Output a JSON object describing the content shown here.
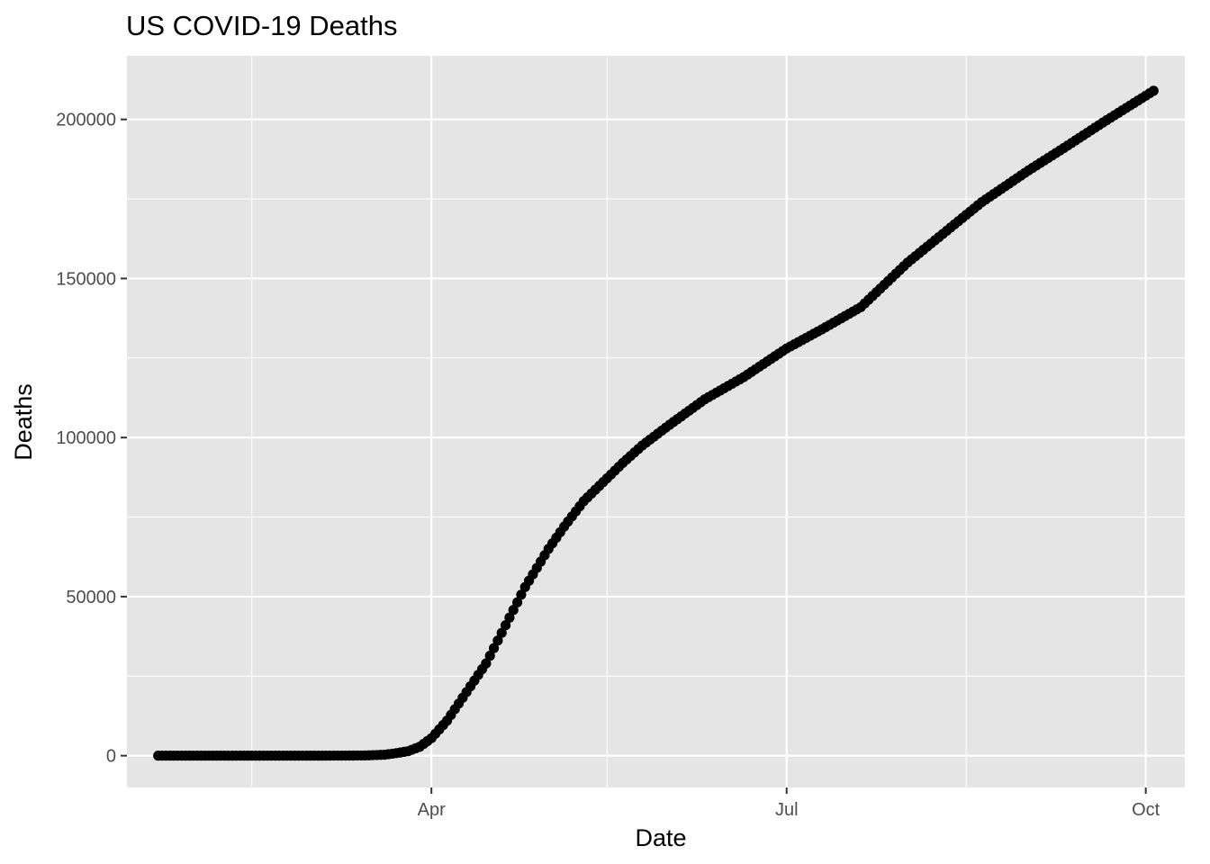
{
  "chart_data": {
    "type": "scatter",
    "title": "US COVID-19 Deaths",
    "xlabel": "Date",
    "ylabel": "Deaths",
    "x_type": "date",
    "x_start": "2020-01-22",
    "x_end": "2020-10-03",
    "xlim": [
      "2020-01-14",
      "2020-10-11"
    ],
    "ylim": [
      -10000,
      220000
    ],
    "x_ticks": [
      {
        "date": "2020-04-01",
        "label": "Apr"
      },
      {
        "date": "2020-07-01",
        "label": "Jul"
      },
      {
        "date": "2020-10-01",
        "label": "Oct"
      }
    ],
    "x_minor_ticks": [
      "2020-02-15",
      "2020-05-16",
      "2020-08-16"
    ],
    "y_ticks": [
      0,
      50000,
      100000,
      150000,
      200000
    ],
    "y_tick_labels": [
      "0",
      "50000",
      "100000",
      "150000",
      "200000"
    ],
    "y_minor_ticks": [
      25000,
      75000,
      125000,
      175000
    ],
    "grid": true,
    "legend": "none",
    "marker_color": "#000000",
    "panel_color": "#e5e5e5",
    "grid_color": "#ffffff",
    "anchors": [
      {
        "date": "2020-01-22",
        "value": 0
      },
      {
        "date": "2020-03-01",
        "value": 1
      },
      {
        "date": "2020-03-10",
        "value": 30
      },
      {
        "date": "2020-03-15",
        "value": 70
      },
      {
        "date": "2020-03-20",
        "value": 300
      },
      {
        "date": "2020-03-23",
        "value": 800
      },
      {
        "date": "2020-03-26",
        "value": 1400
      },
      {
        "date": "2020-03-29",
        "value": 2800
      },
      {
        "date": "2020-04-01",
        "value": 5500
      },
      {
        "date": "2020-04-05",
        "value": 11000
      },
      {
        "date": "2020-04-10",
        "value": 20000
      },
      {
        "date": "2020-04-15",
        "value": 29000
      },
      {
        "date": "2020-04-20",
        "value": 41000
      },
      {
        "date": "2020-04-25",
        "value": 53000
      },
      {
        "date": "2020-05-01",
        "value": 65000
      },
      {
        "date": "2020-05-05",
        "value": 72000
      },
      {
        "date": "2020-05-10",
        "value": 80000
      },
      {
        "date": "2020-05-15",
        "value": 86000
      },
      {
        "date": "2020-05-20",
        "value": 92000
      },
      {
        "date": "2020-05-25",
        "value": 97500
      },
      {
        "date": "2020-06-01",
        "value": 104000
      },
      {
        "date": "2020-06-10",
        "value": 112000
      },
      {
        "date": "2020-06-20",
        "value": 119000
      },
      {
        "date": "2020-07-01",
        "value": 128000
      },
      {
        "date": "2020-07-10",
        "value": 134000
      },
      {
        "date": "2020-07-20",
        "value": 141000
      },
      {
        "date": "2020-08-01",
        "value": 155000
      },
      {
        "date": "2020-08-10",
        "value": 164000
      },
      {
        "date": "2020-08-20",
        "value": 174000
      },
      {
        "date": "2020-09-01",
        "value": 184000
      },
      {
        "date": "2020-09-10",
        "value": 191000
      },
      {
        "date": "2020-09-20",
        "value": 199000
      },
      {
        "date": "2020-10-03",
        "value": 209000
      }
    ]
  }
}
